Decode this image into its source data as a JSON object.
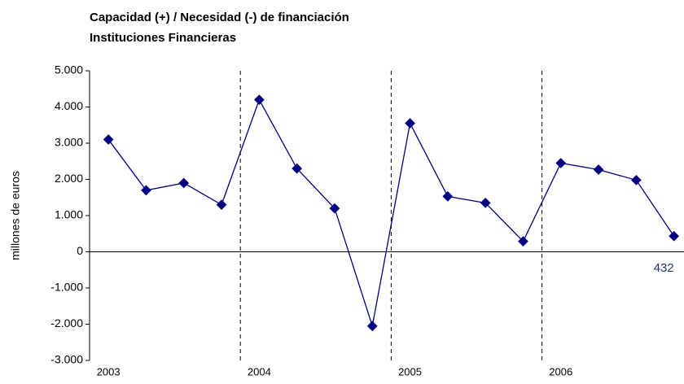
{
  "chart_data": {
    "type": "line",
    "title": [
      "Capacidad (+) / Necesidad (-) de financiación",
      "Instituciones Financieras"
    ],
    "ylabel": "millones de euros",
    "categories": [
      "2003",
      null,
      null,
      null,
      "2004",
      null,
      null,
      null,
      "2005",
      null,
      null,
      null,
      "2006",
      null,
      null,
      null
    ],
    "series": [
      {
        "name": "Capacidad / Necesidad",
        "color": "#000080",
        "values": [
          3100,
          1700,
          1900,
          1300,
          4200,
          2300,
          1200,
          -2050,
          3550,
          1530,
          1350,
          290,
          2450,
          2270,
          1980,
          432
        ]
      }
    ],
    "labeled_points": [
      15
    ],
    "ylim": [
      -3000,
      5000
    ],
    "yticks": [
      {
        "value": -3000,
        "label": "-3.000"
      },
      {
        "value": -2000,
        "label": "-2.000"
      },
      {
        "value": -1000,
        "label": "-1.000"
      },
      0,
      {
        "value": 1000,
        "label": "1.000"
      },
      {
        "value": 2000,
        "label": "2.000"
      },
      {
        "value": 3000,
        "label": "3.000"
      },
      {
        "value": 4000,
        "label": "4.000"
      },
      {
        "value": 5000,
        "label": "5.000"
      }
    ],
    "grid": false
  }
}
